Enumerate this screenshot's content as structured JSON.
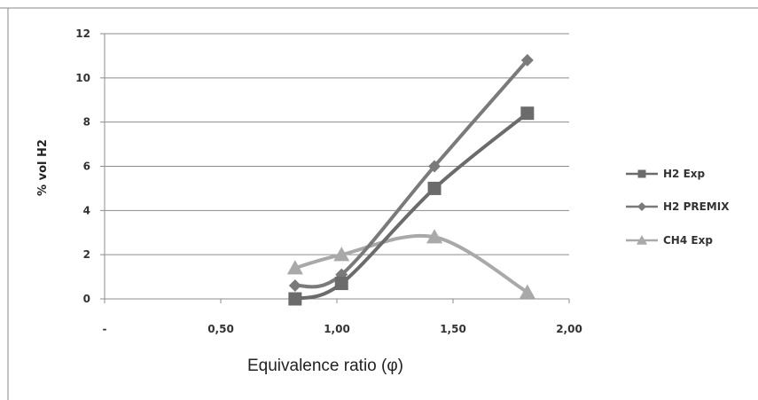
{
  "chart_data": {
    "type": "line",
    "xlabel": "Equivalence ratio (φ)",
    "ylabel": "% vol H2",
    "xlim": [
      0,
      2
    ],
    "ylim": [
      0,
      12
    ],
    "x_ticks": [
      {
        "value": 0,
        "label": "-"
      },
      {
        "value": 0.5,
        "label": "0,50"
      },
      {
        "value": 1.0,
        "label": "1,00"
      },
      {
        "value": 1.5,
        "label": "1,50"
      },
      {
        "value": 2.0,
        "label": "2,00"
      }
    ],
    "y_ticks": [
      {
        "value": 0,
        "label": "0"
      },
      {
        "value": 2,
        "label": "2"
      },
      {
        "value": 4,
        "label": "4"
      },
      {
        "value": 6,
        "label": "6"
      },
      {
        "value": 8,
        "label": "8"
      },
      {
        "value": 10,
        "label": "10"
      },
      {
        "value": 12,
        "label": "12"
      }
    ],
    "grid": "horizontal",
    "legend_position": "right",
    "series": [
      {
        "name": "H2 Exp",
        "color": "#6b6b6b",
        "marker": "square",
        "x": [
          0.82,
          1.02,
          1.42,
          1.82
        ],
        "y": [
          0.0,
          0.7,
          5.0,
          8.4
        ]
      },
      {
        "name": "H2 PREMIX",
        "color": "#7a7a7a",
        "marker": "diamond",
        "x": [
          0.82,
          1.02,
          1.42,
          1.82
        ],
        "y": [
          0.6,
          1.1,
          6.0,
          10.8
        ]
      },
      {
        "name": "CH4 Exp",
        "color": "#a9a9a9",
        "marker": "triangle",
        "x": [
          0.82,
          1.02,
          1.42,
          1.82
        ],
        "y": [
          1.4,
          2.0,
          2.8,
          0.3
        ]
      }
    ]
  }
}
